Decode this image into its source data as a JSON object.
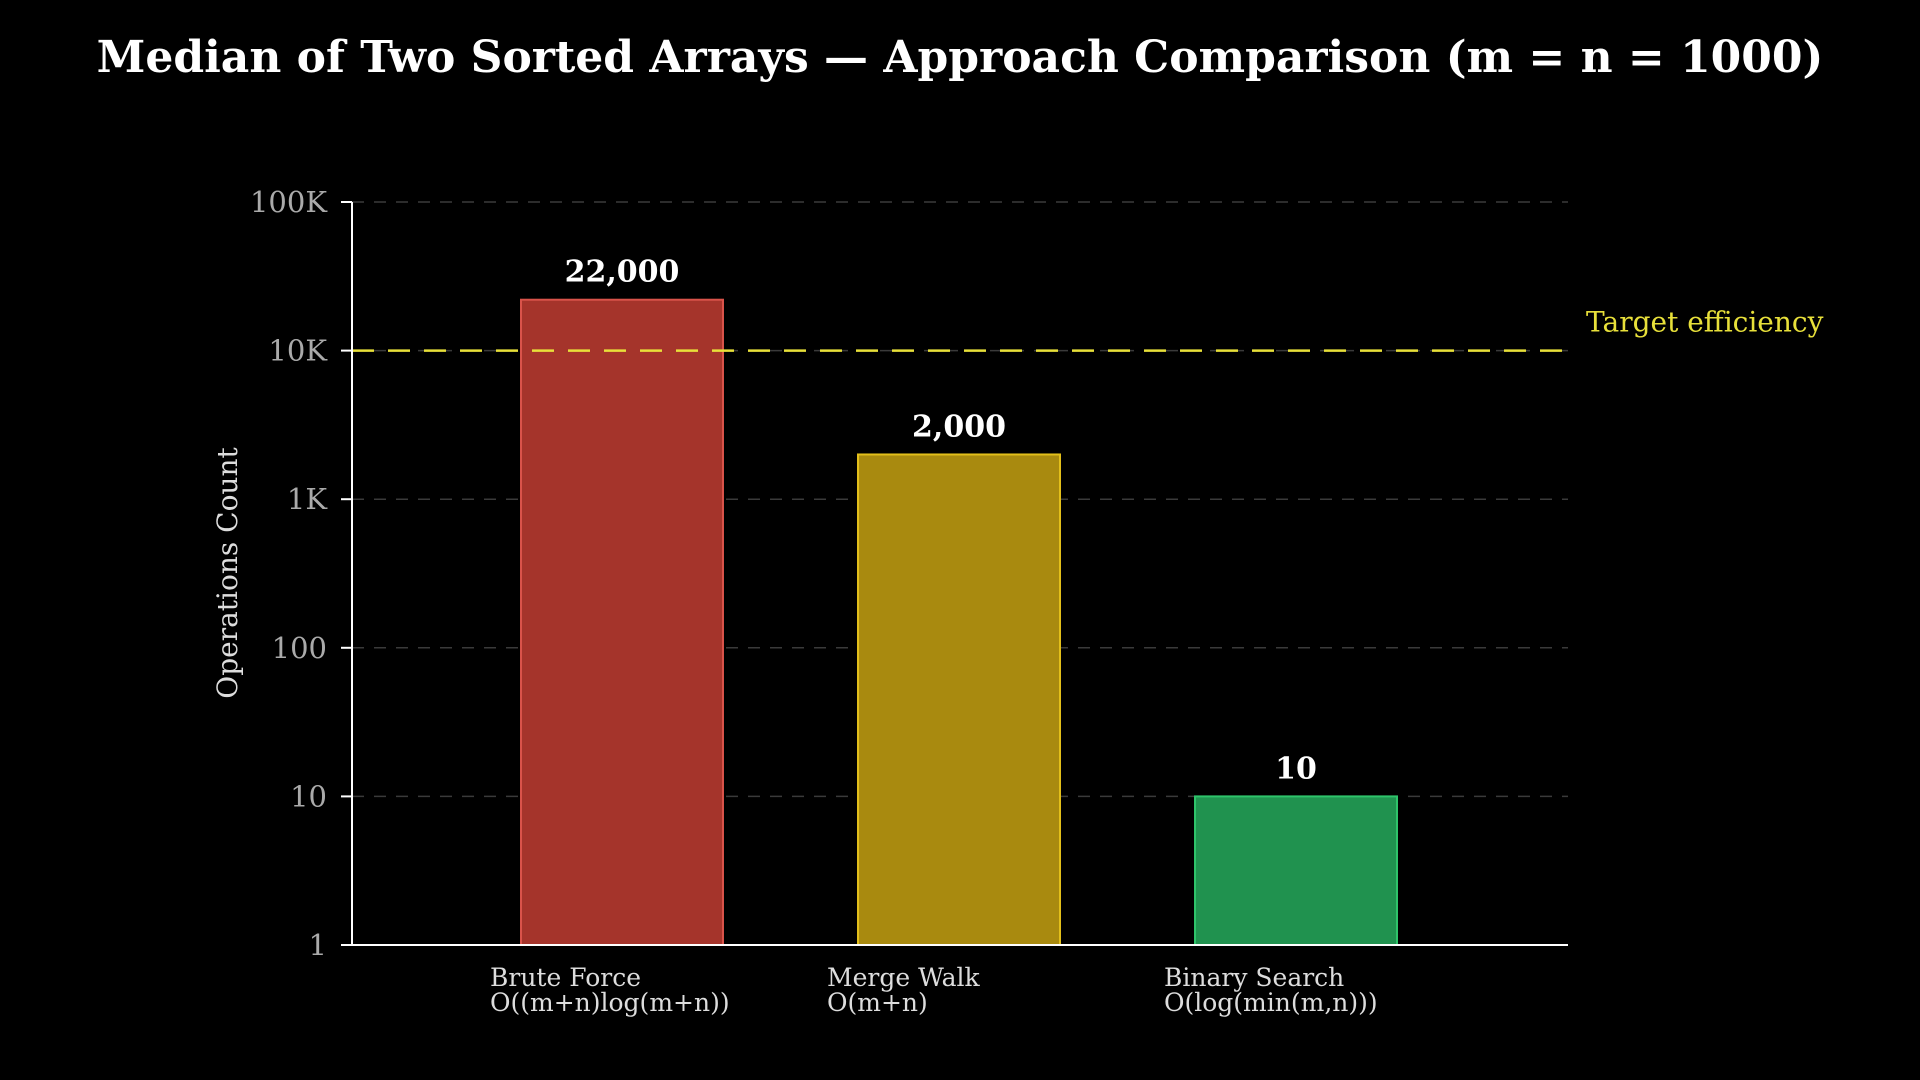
{
  "chart_data": {
    "type": "bar",
    "title": "Median of Two Sorted Arrays — Approach Comparison (m = n = 1000)",
    "xlabel": "",
    "ylabel": "Operations Count",
    "yscale": "log",
    "ylim": [
      1,
      100000
    ],
    "yticks": [
      1,
      10,
      100,
      1000,
      10000,
      100000
    ],
    "ytick_labels": [
      "1",
      "10",
      "100",
      "1K",
      "10K",
      "100K"
    ],
    "grid": true,
    "categories": [
      {
        "name": "Brute Force",
        "complexity": "O((m+n)log(m+n))"
      },
      {
        "name": "Merge Walk",
        "complexity": "O(m+n)"
      },
      {
        "name": "Binary Search",
        "complexity": "O(log(min(m,n)))"
      }
    ],
    "values": [
      22000,
      2000,
      10
    ],
    "value_labels": [
      "22,000",
      "2,000",
      "10"
    ],
    "colors": [
      "#a5342b",
      "#a98a0f",
      "#20924f"
    ],
    "edge_colors": [
      "#d9534a",
      "#e3bf1a",
      "#2ec46a"
    ],
    "reference_line": {
      "value": 10000,
      "label": "Target efficiency",
      "color": "#e8e03a"
    },
    "background": "#000000"
  }
}
